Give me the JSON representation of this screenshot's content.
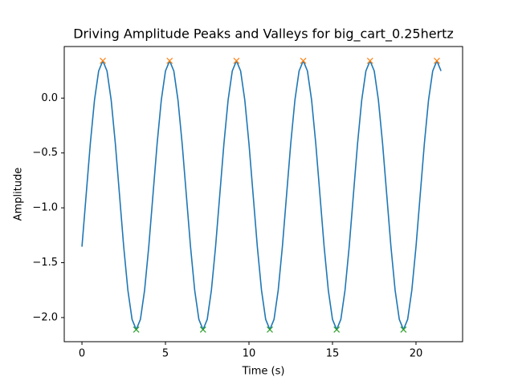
{
  "chart_data": {
    "type": "line",
    "title": "Driving Amplitude Peaks and Valleys for big_cart_0.25hertz",
    "x_label": "Time (s)",
    "y_label": "Amplitude",
    "xlim": [
      -1.06,
      22.79
    ],
    "ylim": [
      -2.22,
      0.47
    ],
    "xticks": [
      0,
      5,
      10,
      15,
      20
    ],
    "yticks": [
      {
        "value": 0,
        "label": "0.0"
      },
      {
        "value": -0.5,
        "label": "−0.5"
      },
      {
        "value": -1,
        "label": "−1.0"
      },
      {
        "value": -1.5,
        "label": "−1.5"
      },
      {
        "value": -2,
        "label": "−2.0"
      }
    ],
    "grid": false,
    "series": [
      {
        "color": "#1f77b4",
        "marker": "none",
        "x": [
          0,
          0.25,
          0.5,
          0.75,
          1,
          1.25,
          1.5,
          1.75,
          2,
          2.25,
          2.5,
          2.75,
          3,
          3.25,
          3.5,
          3.75,
          4,
          4.25,
          4.5,
          4.75,
          5,
          5.25,
          5.5,
          5.75,
          6,
          6.25,
          6.5,
          6.75,
          7,
          7.25,
          7.5,
          7.75,
          8,
          8.25,
          8.5,
          8.75,
          9,
          9.25,
          9.5,
          9.75,
          10,
          10.25,
          10.5,
          10.75,
          11,
          11.25,
          11.5,
          11.75,
          12,
          12.25,
          12.5,
          12.75,
          13,
          13.25,
          13.5,
          13.75,
          14,
          14.25,
          14.5,
          14.75,
          15,
          15.25,
          15.5,
          15.75,
          16,
          16.25,
          16.5,
          16.75,
          17,
          17.25,
          17.5,
          17.75,
          18,
          18.25,
          18.5,
          18.75,
          19,
          19.25,
          19.5,
          19.75,
          20,
          20.25,
          20.5,
          20.75,
          21,
          21.25,
          21.5
        ],
        "values": [
          -1.354,
          -0.885,
          -0.416,
          -0.019,
          0.247,
          0.34,
          0.247,
          -0.019,
          -0.416,
          -0.885,
          -1.354,
          -1.751,
          -2.017,
          -2.11,
          -2.017,
          -1.751,
          -1.354,
          -0.885,
          -0.416,
          -0.019,
          0.247,
          0.34,
          0.247,
          -0.019,
          -0.416,
          -0.885,
          -1.354,
          -1.751,
          -2.017,
          -2.11,
          -2.017,
          -1.751,
          -1.354,
          -0.885,
          -0.416,
          -0.019,
          0.247,
          0.34,
          0.247,
          -0.019,
          -0.416,
          -0.885,
          -1.354,
          -1.751,
          -2.017,
          -2.11,
          -2.017,
          -1.751,
          -1.354,
          -0.885,
          -0.416,
          -0.019,
          0.247,
          0.34,
          0.247,
          -0.019,
          -0.416,
          -0.885,
          -1.354,
          -1.751,
          -2.017,
          -2.11,
          -2.017,
          -1.751,
          -1.354,
          -0.885,
          -0.416,
          -0.019,
          0.247,
          0.34,
          0.247,
          -0.019,
          -0.416,
          -0.885,
          -1.354,
          -1.751,
          -2.017,
          -2.11,
          -2.017,
          -1.751,
          -1.354,
          -0.885,
          -0.416,
          -0.019,
          0.247,
          0.34,
          0.247
        ]
      },
      {
        "color": "#ff7f0e",
        "marker": "x",
        "x": [
          1.25,
          5.25,
          9.25,
          13.25,
          17.25,
          21.25
        ],
        "values": [
          0.34,
          0.34,
          0.34,
          0.34,
          0.34,
          0.34
        ]
      },
      {
        "color": "#2ca02c",
        "marker": "x",
        "x": [
          3.25,
          7.25,
          11.25,
          15.25,
          19.25
        ],
        "values": [
          -2.11,
          -2.11,
          -2.11,
          -2.11,
          -2.11
        ]
      }
    ]
  }
}
